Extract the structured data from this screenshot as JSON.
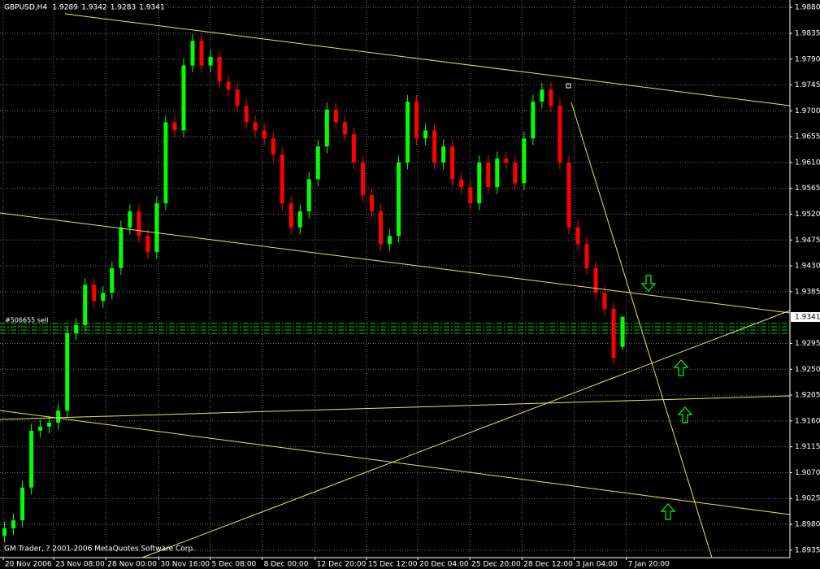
{
  "chart_data": {
    "type": "candlestick",
    "symbol": "GBPUSD,H4",
    "header_values": [
      1.9289,
      1.9342,
      1.9283,
      1.9341
    ],
    "order_label": "#506655 sell",
    "footer": "GM Trader, ? 2001-2006 MetaQuotes Software Corp.",
    "current_price": 1.9341,
    "up_color": "#00ff00",
    "down_color": "#ff0000",
    "grid": true,
    "open": [
      1.896,
      1.8973,
      1.8987,
      1.9044,
      1.9143,
      1.915,
      1.9157,
      1.9178,
      1.9313,
      1.9327,
      1.9397,
      1.9369,
      1.9383,
      1.9426,
      1.9497,
      1.9525,
      1.9482,
      1.9454,
      1.9539,
      1.968,
      1.9666,
      1.9779,
      1.9822,
      1.9779,
      1.9794,
      1.9751,
      1.9737,
      1.9709,
      1.968,
      1.9666,
      1.9652,
      1.9624,
      1.9539,
      1.9497,
      1.9525,
      1.9581,
      1.9638,
      1.9702,
      1.968,
      1.9659,
      1.961,
      1.9553,
      1.9525,
      1.9468,
      1.9482,
      1.961,
      1.9716,
      1.9652,
      1.9666,
      1.961,
      1.9638,
      1.9581,
      1.9567,
      1.9539,
      1.961,
      1.9567,
      1.9617,
      1.961,
      1.9574,
      1.9652,
      1.9716,
      1.9737,
      1.9709,
      1.961,
      1.9497,
      1.9468,
      1.9426,
      1.9383,
      1.9355,
      1.9289
    ],
    "high": [
      1.8985,
      1.8999,
      1.9056,
      1.9155,
      1.9162,
      1.9169,
      1.919,
      1.9325,
      1.9339,
      1.9409,
      1.9409,
      1.9395,
      1.9438,
      1.9509,
      1.9537,
      1.9537,
      1.9494,
      1.9551,
      1.9692,
      1.9692,
      1.9791,
      1.9834,
      1.9834,
      1.9806,
      1.9806,
      1.9763,
      1.9749,
      1.9721,
      1.9692,
      1.9678,
      1.9664,
      1.9636,
      1.9551,
      1.9537,
      1.9593,
      1.965,
      1.9714,
      1.9714,
      1.9692,
      1.9671,
      1.9622,
      1.9565,
      1.9537,
      1.9494,
      1.9622,
      1.9728,
      1.9728,
      1.9678,
      1.9678,
      1.965,
      1.965,
      1.9593,
      1.9579,
      1.9622,
      1.9622,
      1.9629,
      1.9629,
      1.9622,
      1.9664,
      1.9728,
      1.9749,
      1.9749,
      1.9721,
      1.9622,
      1.9509,
      1.948,
      1.9438,
      1.9395,
      1.9367,
      1.9342
    ],
    "low": [
      1.8948,
      1.8961,
      1.8975,
      1.9032,
      1.9131,
      1.9138,
      1.9145,
      1.9166,
      1.9301,
      1.9315,
      1.9357,
      1.9357,
      1.9371,
      1.9414,
      1.9485,
      1.947,
      1.9442,
      1.9442,
      1.9527,
      1.9654,
      1.9654,
      1.9767,
      1.9767,
      1.9767,
      1.9739,
      1.9725,
      1.9697,
      1.9668,
      1.9654,
      1.964,
      1.9612,
      1.9527,
      1.9485,
      1.9485,
      1.9513,
      1.9569,
      1.9626,
      1.9668,
      1.9647,
      1.9598,
      1.9541,
      1.9513,
      1.9456,
      1.9456,
      1.947,
      1.9598,
      1.964,
      1.964,
      1.9598,
      1.9598,
      1.9569,
      1.9555,
      1.9527,
      1.9527,
      1.9555,
      1.9555,
      1.9598,
      1.9562,
      1.9562,
      1.964,
      1.9704,
      1.9697,
      1.9598,
      1.9485,
      1.9456,
      1.9414,
      1.9371,
      1.9343,
      1.9258,
      1.9283
    ],
    "close": [
      1.8973,
      1.8987,
      1.9044,
      1.9143,
      1.915,
      1.9157,
      1.9178,
      1.9313,
      1.9327,
      1.9397,
      1.9369,
      1.9383,
      1.9426,
      1.9497,
      1.9525,
      1.9482,
      1.9454,
      1.9539,
      1.968,
      1.9666,
      1.9779,
      1.9822,
      1.9779,
      1.9794,
      1.9751,
      1.9737,
      1.9709,
      1.968,
      1.9666,
      1.9652,
      1.9624,
      1.9539,
      1.9497,
      1.9525,
      1.9581,
      1.9638,
      1.9702,
      1.968,
      1.9659,
      1.961,
      1.9553,
      1.9525,
      1.9468,
      1.9482,
      1.961,
      1.9716,
      1.9652,
      1.9666,
      1.961,
      1.9638,
      1.9581,
      1.9567,
      1.9539,
      1.961,
      1.9567,
      1.9617,
      1.961,
      1.9574,
      1.9652,
      1.9716,
      1.9737,
      1.9709,
      1.961,
      1.9497,
      1.9468,
      1.9426,
      1.9383,
      1.9355,
      1.927,
      1.9341
    ],
    "xlim": [
      -0.5,
      87.68
    ],
    "xticks": [
      {
        "value": -0.14,
        "label": "20 Nov 2006"
      },
      {
        "value": 5.5,
        "label": "23 Nov 08:00"
      },
      {
        "value": 11.32,
        "label": "28 Nov 00:00"
      },
      {
        "value": 17.23,
        "label": "30 Nov 16:00"
      },
      {
        "value": 22.95,
        "label": "5 Dec 08:00"
      },
      {
        "value": 28.77,
        "label": "8 Dec 00:00"
      },
      {
        "value": 34.68,
        "label": "12 Dec 20:00"
      },
      {
        "value": 40.41,
        "label": "15 Dec 12:00"
      },
      {
        "value": 46.14,
        "label": "20 Dec 04:00"
      },
      {
        "value": 51.95,
        "label": "25 Dec 20:00"
      },
      {
        "value": 57.77,
        "label": "28 Dec 12:00"
      },
      {
        "value": 63.59,
        "label": "3 Jan 04:00"
      },
      {
        "value": 69.41,
        "label": "7 Jan 20:00"
      }
    ],
    "ylim": [
      1.8922,
      1.9893
    ],
    "yticks": [
      {
        "value": 1.988,
        "label": "1.9880"
      },
      1.9835,
      {
        "value": 1.979,
        "label": "1.9790"
      },
      1.9745,
      {
        "value": 1.97,
        "label": "1.9700"
      },
      1.9655,
      {
        "value": 1.961,
        "label": "1.9610"
      },
      1.9565,
      {
        "value": 1.952,
        "label": "1.9520"
      },
      1.9475,
      {
        "value": 1.943,
        "label": "1.9430"
      },
      1.9385,
      1.9295,
      {
        "value": 1.925,
        "label": "1.9250"
      },
      1.9205,
      {
        "value": 1.916,
        "label": "1.9160"
      },
      1.9115,
      {
        "value": 1.907,
        "label": "1.9070"
      },
      1.9025,
      {
        "value": 1.898,
        "label": "1.8980"
      },
      1.8935
    ]
  }
}
